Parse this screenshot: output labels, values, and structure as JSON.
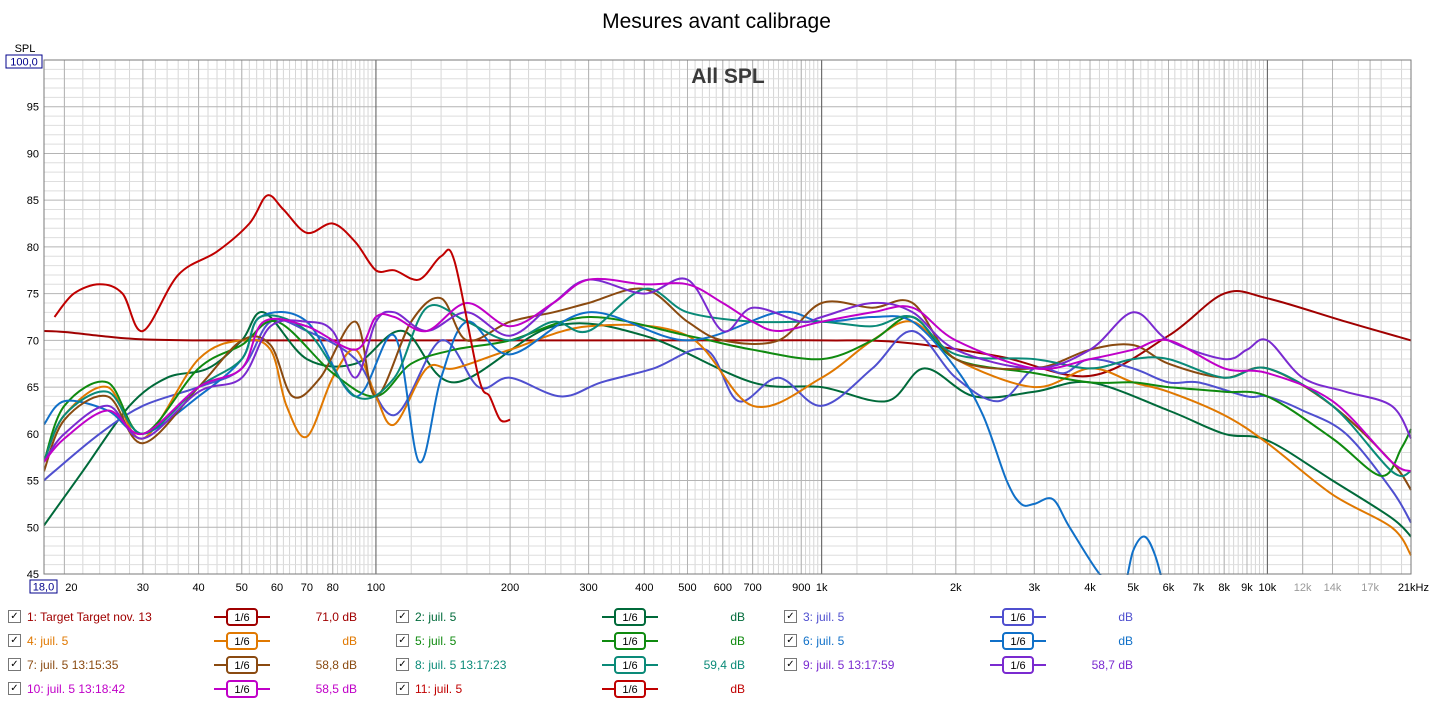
{
  "window": {
    "title": "Mesures avant calibrage"
  },
  "chart_data": {
    "type": "line",
    "title": "All SPL",
    "ylabel": "SPL",
    "ylim": [
      45,
      100
    ],
    "xlim": [
      18,
      21000
    ],
    "xscale": "log",
    "y_top_label": "100,0",
    "x_left_label": "18,0",
    "grid": true,
    "x_ticks": [
      {
        "v": 20,
        "t": "20"
      },
      {
        "v": 30,
        "t": "30"
      },
      {
        "v": 40,
        "t": "40"
      },
      {
        "v": 50,
        "t": "50"
      },
      {
        "v": 60,
        "t": "60"
      },
      {
        "v": 70,
        "t": "70"
      },
      {
        "v": 80,
        "t": "80"
      },
      {
        "v": 100,
        "t": "100"
      },
      {
        "v": 200,
        "t": "200"
      },
      {
        "v": 300,
        "t": "300"
      },
      {
        "v": 400,
        "t": "400"
      },
      {
        "v": 500,
        "t": "500"
      },
      {
        "v": 600,
        "t": "600"
      },
      {
        "v": 700,
        "t": "700"
      },
      {
        "v": 900,
        "t": "900"
      },
      {
        "v": 1000,
        "t": "1k"
      },
      {
        "v": 2000,
        "t": "2k"
      },
      {
        "v": 3000,
        "t": "3k"
      },
      {
        "v": 4000,
        "t": "4k"
      },
      {
        "v": 5000,
        "t": "5k"
      },
      {
        "v": 6000,
        "t": "6k"
      },
      {
        "v": 7000,
        "t": "7k"
      },
      {
        "v": 8000,
        "t": "8k"
      },
      {
        "v": 9000,
        "t": "9k"
      },
      {
        "v": 10000,
        "t": "10k"
      },
      {
        "v": 12000,
        "t": "12k",
        "grey": true
      },
      {
        "v": 14000,
        "t": "14k",
        "grey": true
      },
      {
        "v": 17000,
        "t": "17k",
        "grey": true
      },
      {
        "v": 21000,
        "t": "21kHz"
      }
    ],
    "y_ticks": [
      {
        "v": 95,
        "t": "95"
      },
      {
        "v": 90,
        "t": "90"
      },
      {
        "v": 85,
        "t": "85"
      },
      {
        "v": 80,
        "t": "80"
      },
      {
        "v": 75,
        "t": "75"
      },
      {
        "v": 70,
        "t": "70"
      },
      {
        "v": 65,
        "t": "65"
      },
      {
        "v": 60,
        "t": "60"
      },
      {
        "v": 55,
        "t": "55"
      },
      {
        "v": 50,
        "t": "50"
      },
      {
        "v": 45,
        "t": "45"
      }
    ],
    "series": [
      {
        "name": "1: Target Target nov. 13",
        "color": "#a00000",
        "smoothing": "1/6",
        "value": "71,0 dB",
        "x": [
          18,
          20,
          25,
          30,
          40,
          60,
          100,
          500,
          1000,
          1500,
          2500,
          4000,
          6000,
          8000,
          10000,
          15000,
          21000
        ],
        "y": [
          71,
          70.9,
          70.4,
          70.1,
          70,
          70,
          70,
          70,
          70,
          69.8,
          68.3,
          66.2,
          70.5,
          75,
          74.5,
          72,
          70
        ]
      },
      {
        "name": "2: juil. 5",
        "color": "#006a3a",
        "smoothing": "1/6",
        "value": "dB",
        "x": [
          18,
          22,
          28,
          34,
          42,
          50,
          56,
          70,
          90,
          115,
          150,
          250,
          400,
          700,
          1000,
          1400,
          1700,
          2200,
          3000,
          4000,
          6000,
          8000,
          10000,
          14000,
          19000,
          21000
        ],
        "y": [
          50.2,
          56,
          63,
          66,
          67,
          70,
          73,
          68,
          67.5,
          71,
          65.5,
          71.5,
          70.5,
          65.5,
          65,
          63.5,
          67,
          64,
          64.5,
          65.5,
          62.5,
          60,
          59.3,
          55,
          51,
          49
        ]
      },
      {
        "name": "3: juil. 5",
        "color": "#4f4fcf",
        "smoothing": "1/6",
        "value": "dB",
        "x": [
          18,
          19,
          24,
          30,
          40,
          50,
          58,
          70,
          90,
          110,
          140,
          170,
          200,
          260,
          320,
          420,
          550,
          650,
          800,
          1000,
          1300,
          1600,
          2000,
          2500,
          3000,
          3500,
          4000,
          5000,
          6000,
          7000,
          9000,
          10000,
          12000,
          15000,
          19000,
          21000
        ],
        "y": [
          55,
          56,
          60,
          63,
          65,
          67,
          72,
          71,
          68,
          62,
          70,
          65,
          66,
          64,
          65.5,
          67,
          69,
          63.5,
          66,
          63,
          67,
          71,
          66,
          63.5,
          67,
          66.5,
          68,
          67,
          65.5,
          65.5,
          64,
          64,
          62.5,
          60,
          54,
          50.5
        ]
      },
      {
        "name": "4: juil. 5",
        "color": "#e07800",
        "smoothing": "1/6",
        "value": "dB",
        "x": [
          18,
          20,
          25,
          30,
          40,
          50,
          58,
          63,
          70,
          80,
          90,
          100,
          110,
          130,
          150,
          200,
          300,
          500,
          700,
          1000,
          1300,
          1600,
          2000,
          3000,
          4000,
          5000,
          6000,
          8000,
          10000,
          14000,
          19000,
          21000
        ],
        "y": [
          57,
          62,
          65,
          59.5,
          68,
          70,
          69,
          63,
          59.7,
          66,
          69,
          64,
          61,
          67,
          67,
          69,
          71.5,
          70.5,
          63,
          66,
          70,
          72,
          68,
          65,
          67,
          65.5,
          64.5,
          62,
          59,
          53.5,
          50,
          47
        ]
      },
      {
        "name": "5: juil. 5",
        "color": "#0f8a0f",
        "smoothing": "1/6",
        "value": "dB",
        "x": [
          18,
          20,
          25,
          30,
          40,
          50,
          60,
          80,
          100,
          120,
          150,
          200,
          300,
          500,
          700,
          1000,
          1300,
          1600,
          2000,
          3000,
          4000,
          5000,
          6000,
          8000,
          10000,
          14000,
          18000,
          20000,
          21000
        ],
        "y": [
          57,
          63,
          65.5,
          60,
          67,
          69.5,
          72,
          66.5,
          64,
          67.5,
          69,
          70,
          72.5,
          70.5,
          69,
          68,
          70,
          72.5,
          68,
          66.5,
          65.5,
          65.5,
          65,
          64.5,
          64,
          59.5,
          55.5,
          58.5,
          60.5
        ]
      },
      {
        "name": "6: juil. 5",
        "color": "#1070c8",
        "smoothing": "1/6",
        "value": "dB",
        "x": [
          18,
          20,
          25,
          30,
          40,
          50,
          55,
          70,
          90,
          110,
          125,
          140,
          160,
          200,
          300,
          500,
          800,
          1000,
          1300,
          1600,
          2000,
          2300,
          2600,
          2800,
          3000,
          3300,
          3600,
          4200,
          4700,
          5000,
          5300,
          5600,
          5900
        ],
        "y": [
          61,
          63.5,
          62.5,
          60,
          64,
          68,
          72.5,
          72,
          64,
          70.5,
          57,
          66,
          72,
          68.5,
          73,
          70,
          73,
          72,
          72.5,
          72,
          67,
          62,
          55,
          52.5,
          52.5,
          53,
          50,
          45,
          43,
          47.5,
          49,
          47,
          43
        ]
      },
      {
        "name": "7: juil. 5 13:15:35",
        "color": "#8a4a10",
        "smoothing": "1/6",
        "value": "58,8 dB",
        "x": [
          18,
          20,
          25,
          30,
          40,
          50,
          58,
          65,
          75,
          90,
          100,
          120,
          140,
          160,
          200,
          250,
          300,
          400,
          500,
          600,
          800,
          1000,
          1300,
          1600,
          2000,
          3000,
          4000,
          5000,
          6000,
          8000,
          10000,
          14000,
          19000,
          21000
        ],
        "y": [
          56,
          61.5,
          64,
          59,
          65,
          70,
          69.5,
          64,
          66,
          72,
          64,
          72,
          74.5,
          70,
          72,
          73,
          74,
          75.5,
          72,
          70,
          70,
          74,
          73.5,
          74,
          68,
          67,
          69,
          69.5,
          67.5,
          66,
          67,
          63,
          57,
          54
        ]
      },
      {
        "name": "8: juil. 5 13:17:23",
        "color": "#0a8a78",
        "smoothing": "1/6",
        "value": "59,4 dB",
        "x": [
          18,
          20,
          25,
          30,
          40,
          50,
          55,
          70,
          90,
          110,
          130,
          160,
          200,
          250,
          300,
          400,
          500,
          700,
          1000,
          1300,
          1600,
          2000,
          3000,
          4000,
          5000,
          6000,
          8000,
          10000,
          14000,
          19000,
          21000
        ],
        "y": [
          57,
          62,
          64.5,
          60,
          65,
          68,
          72.5,
          71,
          64,
          66,
          73.5,
          72,
          70,
          72,
          71,
          75.5,
          73,
          72,
          72,
          71.5,
          72.5,
          68.5,
          68,
          67,
          68,
          68,
          66,
          67,
          63,
          56,
          56
        ]
      },
      {
        "name": "9: juil. 5 13:17:59",
        "color": "#7a2ad0",
        "smoothing": "1/6",
        "value": "58,7 dB",
        "x": [
          18,
          20,
          25,
          30,
          40,
          50,
          58,
          70,
          80,
          90,
          100,
          110,
          130,
          160,
          200,
          250,
          300,
          400,
          500,
          600,
          700,
          900,
          1000,
          1300,
          1600,
          2000,
          3000,
          4000,
          5000,
          6000,
          8000,
          9000,
          10000,
          12000,
          15000,
          19000,
          21000
        ],
        "y": [
          57,
          60,
          63,
          59.5,
          64.5,
          66,
          71.5,
          72,
          71,
          66,
          72,
          73,
          71,
          73,
          70.5,
          74,
          76.5,
          75,
          76.5,
          71,
          73.5,
          72,
          72.5,
          74,
          73,
          69,
          67,
          69,
          73,
          70,
          68,
          69,
          70,
          66,
          64.5,
          63,
          59.5
        ]
      },
      {
        "name": "10: juil. 5 13:18:42",
        "color": "#c000c8",
        "smoothing": "1/6",
        "value": "58,5 dB",
        "x": [
          18,
          20,
          25,
          30,
          40,
          50,
          56,
          70,
          90,
          100,
          110,
          130,
          160,
          200,
          250,
          300,
          400,
          500,
          600,
          700,
          800,
          1000,
          1300,
          1600,
          2000,
          3000,
          4000,
          5000,
          6000,
          8000,
          10000,
          14000,
          19000,
          21000
        ],
        "y": [
          57,
          59.5,
          62.5,
          60,
          65,
          67,
          72,
          71.5,
          69,
          72.5,
          72.5,
          71,
          74,
          71.5,
          74,
          76.5,
          76,
          76,
          74,
          72,
          71,
          72,
          73,
          73.5,
          70,
          67,
          68,
          69,
          70,
          67,
          66.5,
          63.5,
          57,
          56
        ]
      },
      {
        "name": "11: juil. 5",
        "color": "#c00000",
        "smoothing": "1/6",
        "value": "dB",
        "x": [
          19,
          21,
          24,
          27,
          30,
          36,
          44,
          52,
          57,
          62,
          70,
          80,
          90,
          100,
          110,
          125,
          140,
          150,
          170,
          180,
          190,
          200
        ],
        "y": [
          72.5,
          75,
          76,
          75,
          71,
          77,
          79.5,
          82.5,
          85.5,
          84,
          81.5,
          82.5,
          80.5,
          77.5,
          77.5,
          76.5,
          79,
          78.5,
          66,
          64,
          61.5,
          61.5
        ]
      }
    ]
  },
  "legend_layout": [
    0,
    1,
    2,
    3,
    4,
    5,
    6,
    7,
    8,
    9,
    10
  ]
}
